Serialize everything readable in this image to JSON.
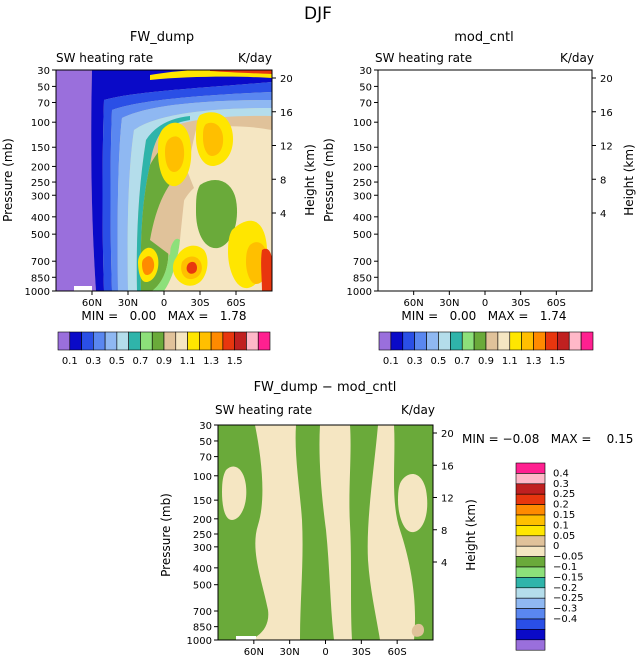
{
  "suptitle": "DJF",
  "palette_main": [
    "#9a6fdc",
    "#0a0ac8",
    "#2a4fe6",
    "#5a87f0",
    "#8fb8f2",
    "#b4ddeb",
    "#2fb4aa",
    "#8de07a",
    "#6aaa3a",
    "#e0c29a",
    "#f5e6c2",
    "#ffe600",
    "#ffbf00",
    "#ff8a00",
    "#e8360e",
    "#c02020",
    "#ffb8c8",
    "#ff2090"
  ],
  "palette_diff": [
    "#9a6fdc",
    "#0a0ac8",
    "#2a4fe6",
    "#5a87f0",
    "#8fb8f2",
    "#b4ddeb",
    "#2fb4aa",
    "#8de07a",
    "#6aaa3a",
    "#f5e6c2",
    "#e0c29a",
    "#ffe600",
    "#ffbf00",
    "#ff8a00",
    "#e8360e",
    "#c02020",
    "#ffb8c8",
    "#ff2090"
  ],
  "chart_data": [
    {
      "type": "heatmap",
      "title": "FW_dump",
      "subtitle_left": "SW heating rate",
      "subtitle_right": "K/day",
      "ylabel": "Pressure (mb)",
      "ylabel_right": "Height (km)",
      "x_ticks": [
        "60N",
        "30N",
        "0",
        "30S",
        "60S"
      ],
      "y_ticks": [
        "30",
        "50",
        "70",
        "100",
        "150",
        "200",
        "250",
        "300",
        "400",
        "500",
        "700",
        "850",
        "1000"
      ],
      "height_ticks": [
        "20",
        "16",
        "12",
        "8",
        "4"
      ],
      "stats": "MIN =   0.00   MAX =   1.78",
      "min": 0.0,
      "max": 1.78,
      "colorbar_labels": [
        "0.1",
        "0.3",
        "0.5",
        "0.7",
        "0.9",
        "1.1",
        "1.3",
        "1.5"
      ]
    },
    {
      "type": "heatmap",
      "title": "mod_cntl",
      "subtitle_left": "SW heating rate",
      "subtitle_right": "K/day",
      "ylabel": "Pressure (mb)",
      "ylabel_right": "Height (km)",
      "x_ticks": [
        "60N",
        "30N",
        "0",
        "30S",
        "60S"
      ],
      "y_ticks": [
        "30",
        "50",
        "70",
        "100",
        "150",
        "200",
        "250",
        "300",
        "400",
        "500",
        "700",
        "850",
        "1000"
      ],
      "height_ticks": [
        "20",
        "16",
        "12",
        "8",
        "4"
      ],
      "stats": "MIN =   0.00   MAX =   1.74",
      "min": 0.0,
      "max": 1.74,
      "colorbar_labels": [
        "0.1",
        "0.3",
        "0.5",
        "0.7",
        "0.9",
        "1.1",
        "1.3",
        "1.5"
      ]
    },
    {
      "type": "heatmap",
      "title": "FW_dump − mod_cntl",
      "subtitle_left": "SW heating rate",
      "subtitle_right": "K/day",
      "ylabel": "Pressure (mb)",
      "ylabel_right": "Height (km)",
      "x_ticks": [
        "60N",
        "30N",
        "0",
        "30S",
        "60S"
      ],
      "y_ticks": [
        "30",
        "50",
        "70",
        "100",
        "150",
        "200",
        "250",
        "300",
        "400",
        "500",
        "700",
        "850",
        "1000"
      ],
      "height_ticks": [
        "20",
        "16",
        "12",
        "8",
        "4"
      ],
      "stats": "MIN = −0.08   MAX =    0.15",
      "min": -0.08,
      "max": 0.15,
      "colorbar_labels": [
        "0.4",
        "0.3",
        "0.25",
        "0.2",
        "0.15",
        "0.1",
        "0.05",
        "0",
        "−0.05",
        "−0.1",
        "−0.15",
        "−0.2",
        "−0.25",
        "−0.3",
        "−0.4"
      ]
    }
  ]
}
